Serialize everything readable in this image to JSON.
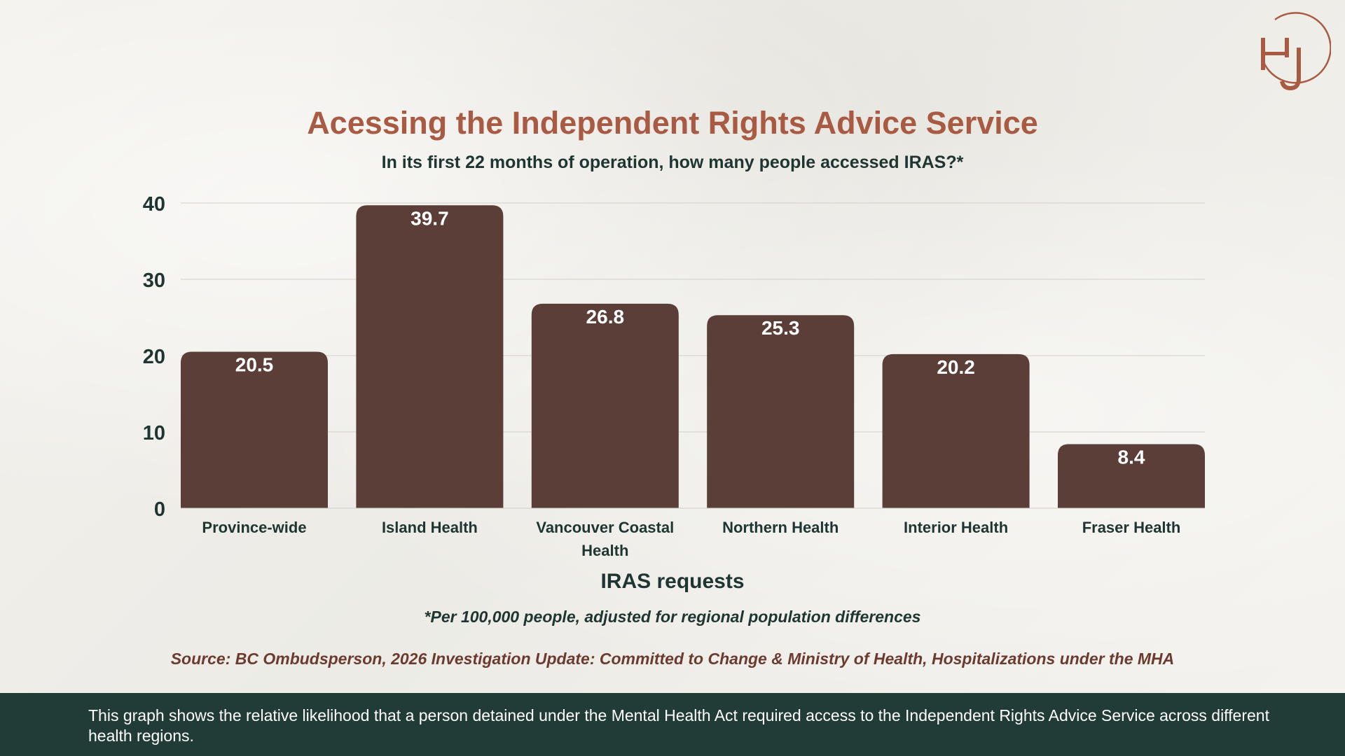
{
  "logo": {
    "letters": "HJ",
    "color": "#a85a42"
  },
  "chart_data": {
    "type": "bar",
    "title": "Acessing the Independent Rights Advice Service",
    "subtitle": "In its first 22 months of operation, how many people accessed IRAS?*",
    "categories": [
      "Province-wide",
      "Island Health",
      "Vancouver Coastal Health",
      "Northern Health",
      "Interior Health",
      "Fraser Health"
    ],
    "category_lines": [
      [
        "Province-wide"
      ],
      [
        "Island Health"
      ],
      [
        "Vancouver Coastal",
        "Health"
      ],
      [
        "Northern Health"
      ],
      [
        "Interior Health"
      ],
      [
        "Fraser Health"
      ]
    ],
    "values": [
      20.5,
      39.7,
      26.8,
      25.3,
      20.2,
      8.4
    ],
    "value_labels": [
      "20.5",
      "39.7",
      "26.8",
      "25.3",
      "20.2",
      "8.4"
    ],
    "xlabel": "IRAS requests",
    "ylabel": "",
    "ylim": [
      0,
      40
    ],
    "yticks": [
      0,
      10,
      20,
      30,
      40
    ],
    "grid": true,
    "legend": "none",
    "bar_color": "#5b3e37",
    "label_color": "#ffffff",
    "axis_text_color": "#1f3532"
  },
  "footnote": "*Per 100,000 people, adjusted for regional population differences",
  "source": "Source: BC Ombudsperson, 2026 Investigation Update: Committed to Change & Ministry of Health, Hospitalizations under the MHA",
  "footer": {
    "text": "This graph shows the relative likelihood that a person detained under the Mental Health Act required access to the Independent Rights Advice Service across different health regions."
  }
}
